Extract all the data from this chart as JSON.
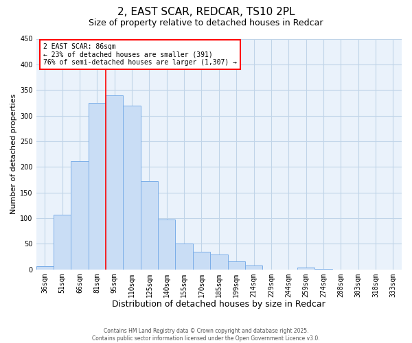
{
  "title": "2, EAST SCAR, REDCAR, TS10 2PL",
  "subtitle": "Size of property relative to detached houses in Redcar",
  "xlabel": "Distribution of detached houses by size in Redcar",
  "ylabel": "Number of detached properties",
  "bar_labels": [
    "36sqm",
    "51sqm",
    "66sqm",
    "81sqm",
    "95sqm",
    "110sqm",
    "125sqm",
    "140sqm",
    "155sqm",
    "170sqm",
    "185sqm",
    "199sqm",
    "214sqm",
    "229sqm",
    "244sqm",
    "259sqm",
    "274sqm",
    "288sqm",
    "303sqm",
    "318sqm",
    "333sqm"
  ],
  "bar_values": [
    6,
    107,
    211,
    325,
    340,
    320,
    172,
    98,
    50,
    35,
    29,
    16,
    8,
    0,
    0,
    4,
    1,
    0,
    0,
    0,
    0
  ],
  "bar_color": "#c9ddf5",
  "bar_edgecolor": "#7baee8",
  "ylim": [
    0,
    450
  ],
  "yticks": [
    0,
    50,
    100,
    150,
    200,
    250,
    300,
    350,
    400,
    450
  ],
  "annotation_title": "2 EAST SCAR: 86sqm",
  "annotation_line1": "← 23% of detached houses are smaller (391)",
  "annotation_line2": "76% of semi-detached houses are larger (1,307) →",
  "footer1": "Contains HM Land Registry data © Crown copyright and database right 2025.",
  "footer2": "Contains public sector information licensed under the Open Government Licence v3.0.",
  "plot_bg_color": "#eaf2fb",
  "background_color": "#ffffff",
  "grid_color": "#c0d4e8",
  "title_fontsize": 11,
  "subtitle_fontsize": 9,
  "xlabel_fontsize": 9,
  "ylabel_fontsize": 8,
  "tick_fontsize": 7,
  "annotation_fontsize": 7,
  "footer_fontsize": 5.5
}
